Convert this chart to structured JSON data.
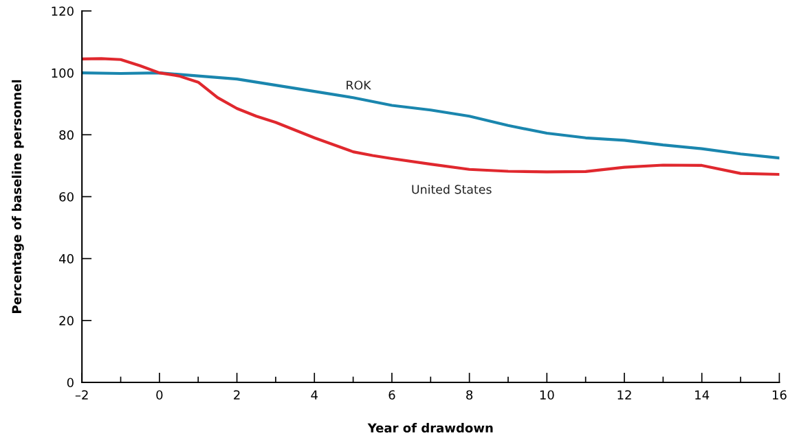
{
  "chart_data": {
    "type": "line",
    "xlabel": "Year of drawdown",
    "ylabel": "Percentage of baseline personnel",
    "xlim": [
      -2,
      16
    ],
    "ylim": [
      0,
      120
    ],
    "xticks": [
      {
        "value": -2,
        "label": "–2"
      },
      {
        "value": -1,
        "label": null
      },
      0,
      {
        "value": 1,
        "label": null
      },
      2,
      {
        "value": 3,
        "label": null
      },
      4,
      {
        "value": 5,
        "label": null
      },
      6,
      {
        "value": 7,
        "label": null
      },
      8,
      {
        "value": 9,
        "label": null
      },
      10,
      {
        "value": 11,
        "label": null
      },
      12,
      {
        "value": 13,
        "label": null
      },
      14,
      {
        "value": 15,
        "label": null
      },
      16
    ],
    "yticks": [
      0,
      20,
      40,
      60,
      80,
      100,
      120
    ],
    "grid": false,
    "legend": false,
    "marker": "none",
    "line_style": "solid",
    "series": [
      {
        "name": "ROK",
        "color": "#1a86ae",
        "x": [
          -2,
          -1,
          0,
          1,
          2,
          3,
          4,
          5,
          6,
          7,
          8,
          9,
          10,
          11,
          12,
          13,
          14,
          15,
          16
        ],
        "values": [
          100,
          99.8,
          100,
          99,
          98,
          96,
          94,
          92,
          89.5,
          88,
          86,
          83,
          80.5,
          79,
          78.2,
          76.7,
          75.5,
          73.8,
          72.5
        ]
      },
      {
        "name": "United States",
        "color": "#e0282e",
        "x": [
          -2,
          -1.5,
          -1,
          -0.5,
          0,
          0.5,
          1,
          1.5,
          2,
          2.5,
          3,
          4,
          5,
          5.5,
          6,
          7,
          8,
          9,
          10,
          11,
          12,
          13,
          14,
          15,
          16
        ],
        "values": [
          104.5,
          104.6,
          104.3,
          102.3,
          100,
          99,
          97,
          92,
          88.5,
          86,
          84,
          79,
          74.5,
          73.3,
          72.3,
          70.5,
          68.8,
          68.2,
          68,
          68.1,
          69.5,
          70.2,
          70.1,
          67.5,
          67.2
        ]
      }
    ]
  }
}
